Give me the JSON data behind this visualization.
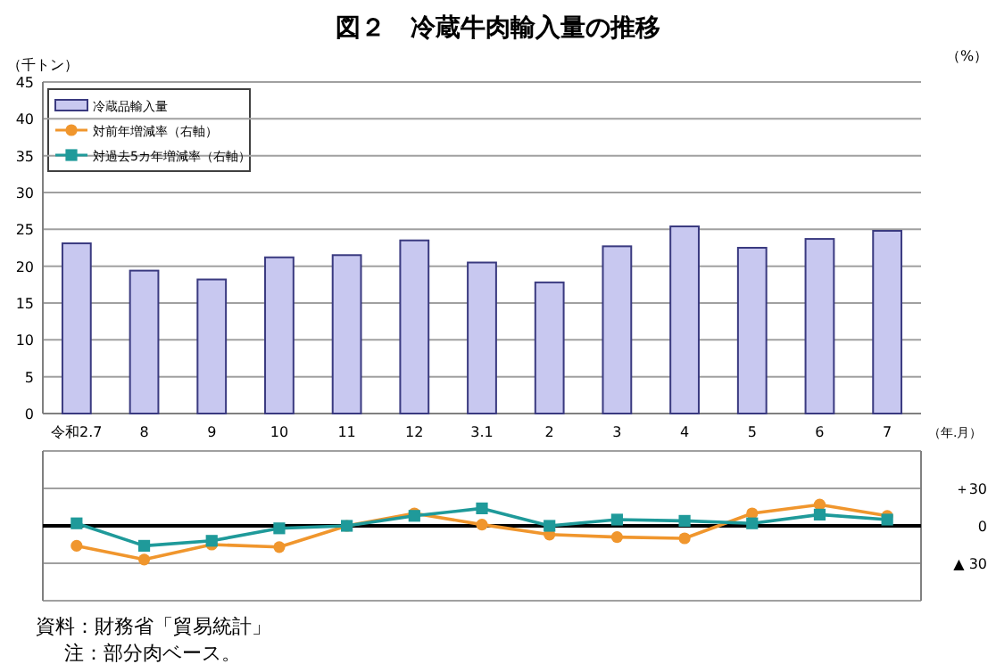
{
  "chart_data": [
    {
      "type": "bar",
      "title": "図２　冷蔵牛肉輸入量の推移",
      "ylabel": "（千トン）",
      "xlabel": "（年.月）",
      "categories": [
        "令和2.7",
        "8",
        "9",
        "10",
        "11",
        "12",
        "3.1",
        "2",
        "3",
        "4",
        "5",
        "6",
        "7"
      ],
      "series": [
        {
          "name": "冷蔵品輸入量",
          "color": "#c8c8f0",
          "values": [
            23.1,
            19.4,
            18.2,
            21.2,
            21.5,
            23.5,
            20.5,
            17.8,
            22.7,
            25.4,
            22.5,
            23.7,
            24.8
          ]
        }
      ],
      "ylim": [
        0,
        45
      ],
      "yticks": [
        0,
        5,
        10,
        15,
        20,
        25,
        30,
        35,
        40,
        45
      ],
      "grid": "y",
      "legend": "top left"
    },
    {
      "type": "line",
      "y2label": "（%）",
      "categories": [
        null,
        null,
        null,
        null,
        null,
        null,
        null,
        null,
        null,
        null,
        null,
        null,
        null
      ],
      "series": [
        {
          "name": "対前年増減率（右軸）",
          "color": "#f0962d",
          "marker": "circle",
          "values": [
            -16,
            -27,
            -15,
            -17,
            0,
            10,
            1,
            -7,
            -9,
            -10,
            10,
            17,
            8
          ]
        },
        {
          "name": "対過去5カ年増減率（右軸）",
          "color": "#1f9a9a",
          "marker": "square",
          "values": [
            2,
            -16,
            -12,
            -2,
            0,
            8,
            14,
            0,
            5,
            4,
            2,
            9,
            5
          ]
        }
      ],
      "ylim": [
        -60,
        60
      ],
      "yticks": [
        {
          "value": 60,
          "label": null
        },
        {
          "value": 30,
          "label": "＋30"
        },
        0,
        {
          "value": -30,
          "label": "▲ 30"
        },
        {
          "value": -60,
          "label": null
        }
      ],
      "ref_lines": [
        {
          "axis": "y",
          "value": 0,
          "color": "#000000"
        }
      ],
      "grid": "y",
      "tick_labels": "y",
      "legend": "top left",
      "annotations": [
        "資料：財務省「貿易統計」",
        "注：部分肉ベース。"
      ]
    }
  ]
}
